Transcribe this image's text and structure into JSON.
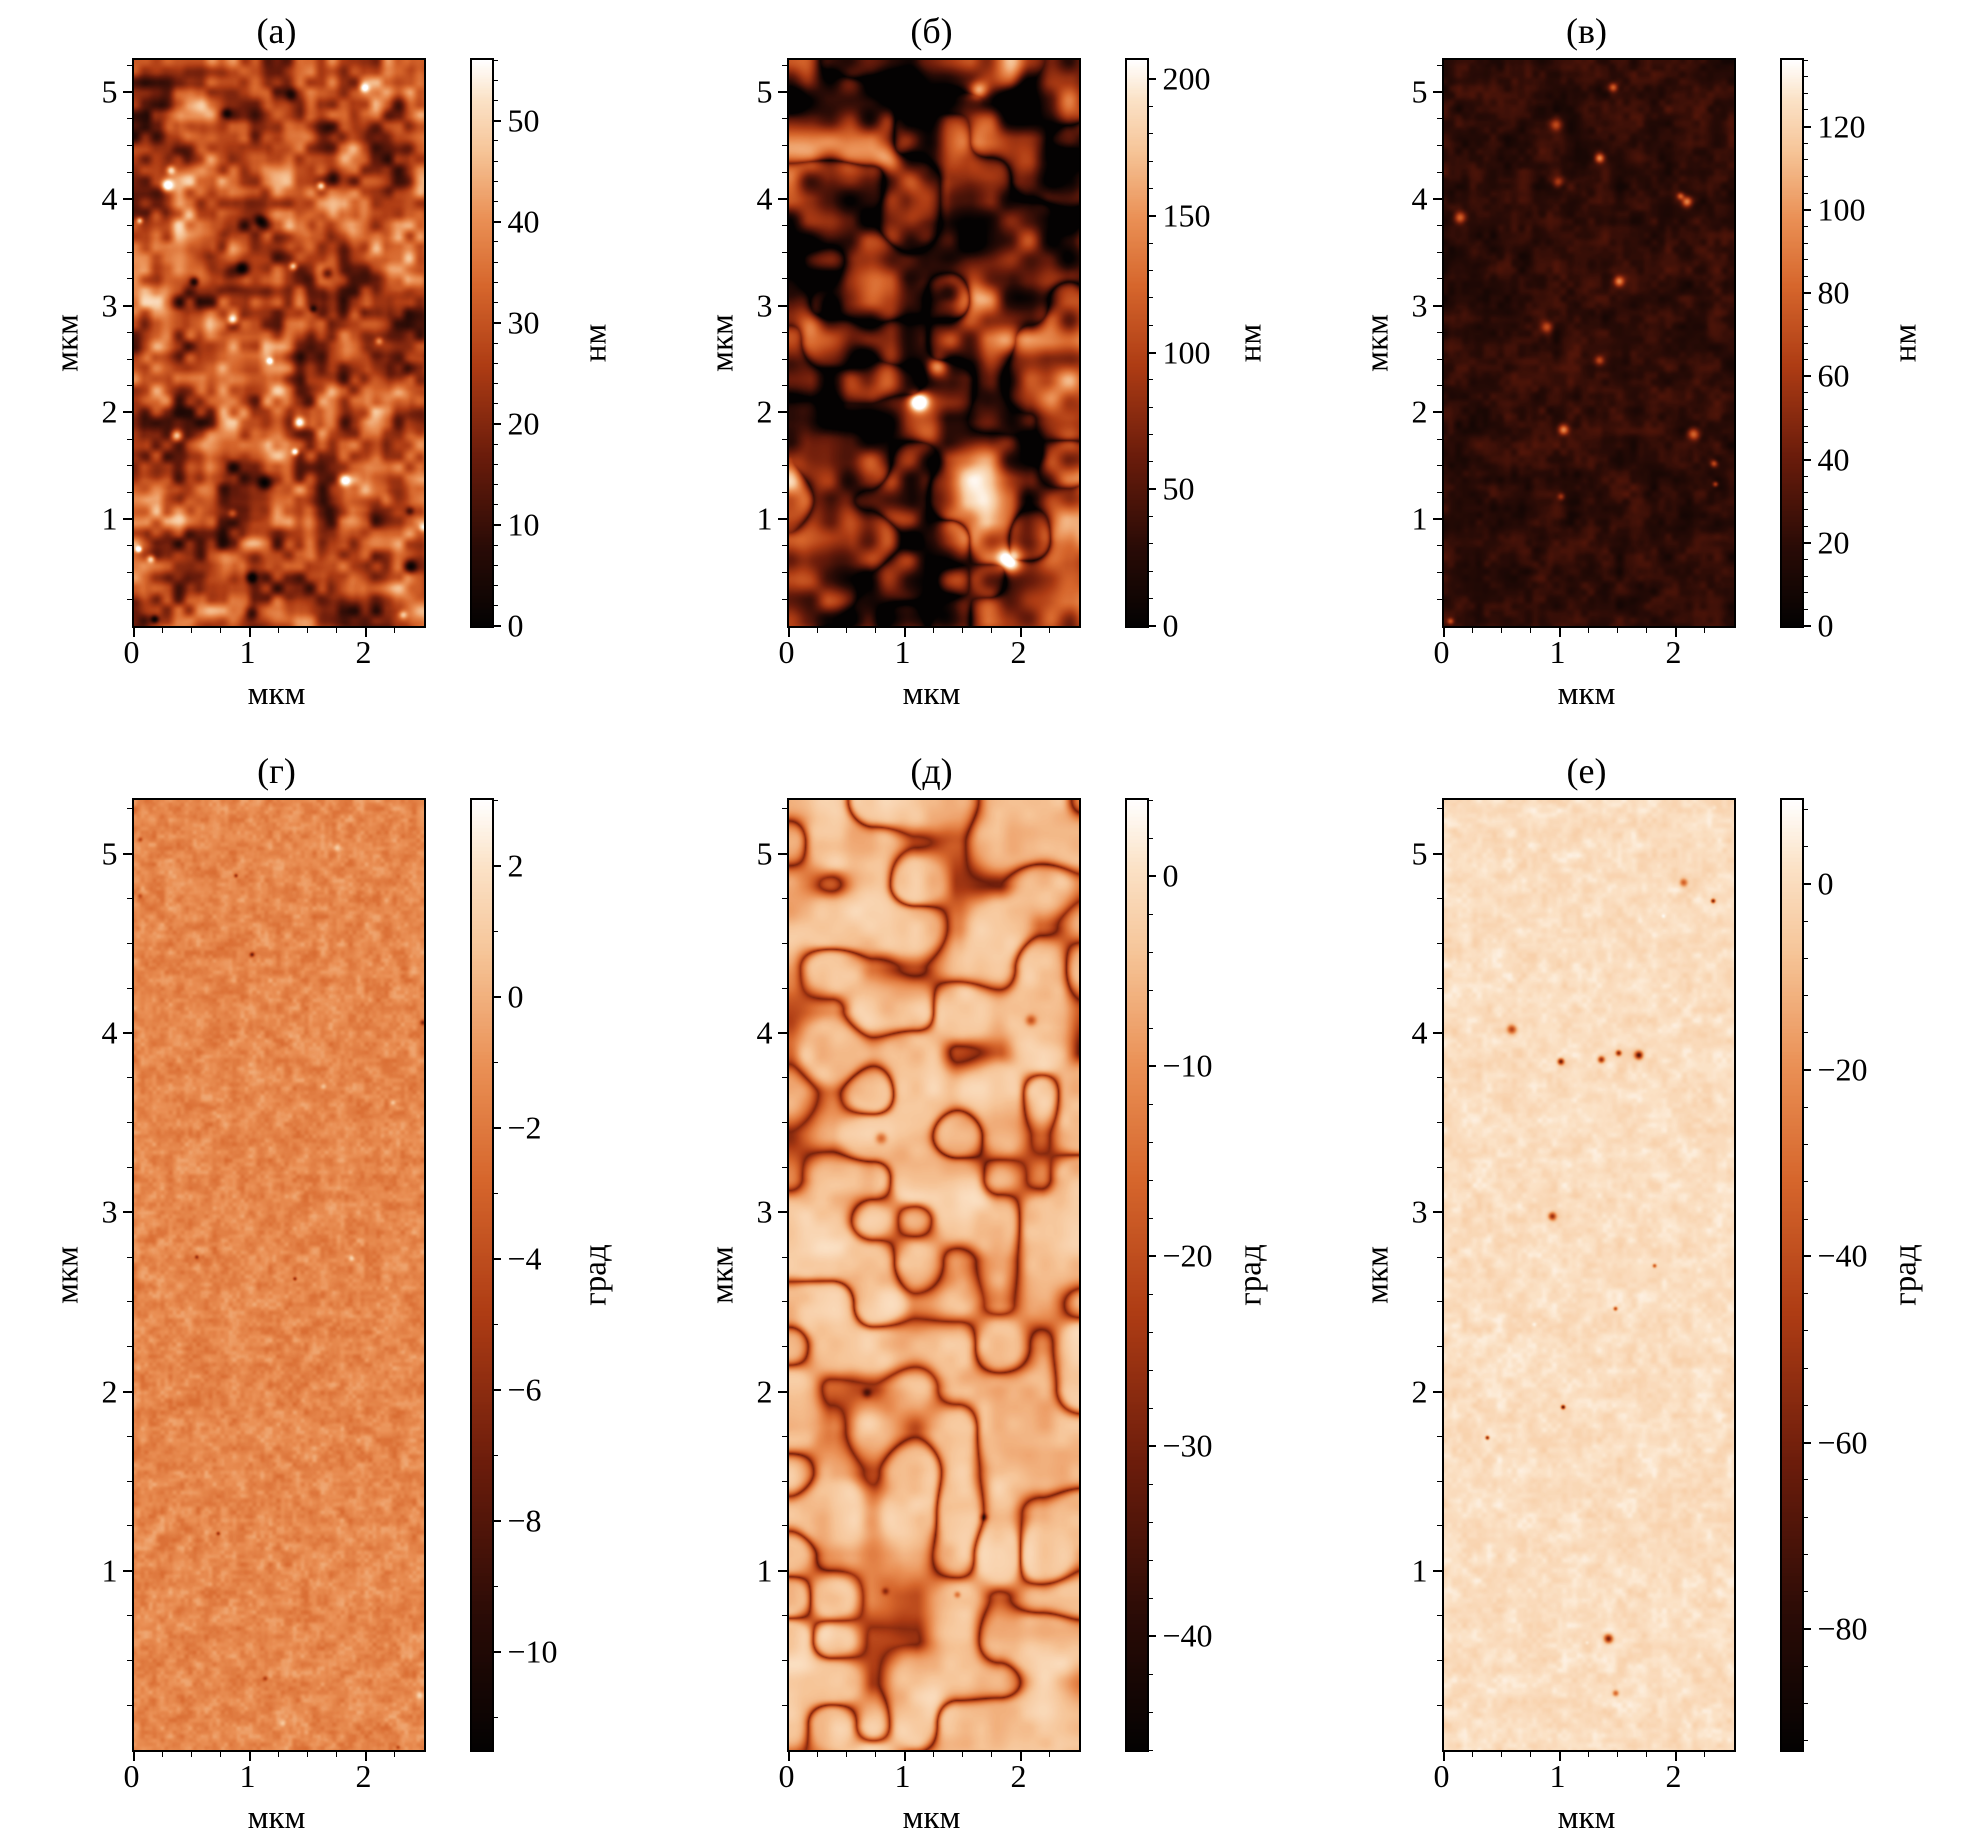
{
  "figure": {
    "type": "afm-six-panel-figure",
    "rows": 2,
    "cols": 3,
    "background": "#ffffff",
    "frame_color": "#000000",
    "colormap_stops": [
      [
        0.0,
        "#040202"
      ],
      [
        0.14,
        "#2a0b06"
      ],
      [
        0.3,
        "#6b1c0b"
      ],
      [
        0.46,
        "#ae3c14"
      ],
      [
        0.6,
        "#d6662c"
      ],
      [
        0.72,
        "#ea9055"
      ],
      [
        0.84,
        "#f6c598"
      ],
      [
        0.93,
        "#fbe2c6"
      ],
      [
        1.0,
        "#ffffff"
      ]
    ]
  },
  "chart_data": [
    {
      "type": "heatmap",
      "label": "(а)",
      "row": 0,
      "xlabel": "мкм",
      "ylabel": "мкм",
      "xlim": [
        0,
        2.5
      ],
      "ylim": [
        0,
        5.3
      ],
      "xticks": [
        0,
        1,
        2
      ],
      "yticks": [
        1,
        2,
        3,
        4,
        5
      ],
      "colorbar": {
        "unit": "нм",
        "ticks": [
          0,
          10,
          20,
          30,
          40,
          50
        ],
        "ticks_display": [
          "0",
          "10",
          "20",
          "30",
          "40",
          "50"
        ],
        "vmin": 0,
        "vmax": 56,
        "minor_step": 2
      },
      "surface": "AFM height map: dense mottled orange-red granular texture, mean height ~30 нм, scattered bright peaks near 55 нм and dark pits near 0 нм",
      "texture": {
        "seed": 11,
        "scale": 24,
        "scale2": 11,
        "mean": 0.5,
        "amp": 0.4,
        "contrast": 1.15,
        "spots_bright": {
          "n": 18,
          "r": [
            3,
            7
          ],
          "a": [
            0.25,
            0.6
          ]
        },
        "spots_dark": {
          "n": 14,
          "r": [
            4,
            9
          ],
          "a": [
            0.2,
            0.45
          ]
        }
      }
    },
    {
      "type": "heatmap",
      "label": "(б)",
      "row": 0,
      "xlabel": "мкм",
      "ylabel": "мкм",
      "xlim": [
        0,
        2.5
      ],
      "ylim": [
        0,
        5.3
      ],
      "xticks": [
        0,
        1,
        2
      ],
      "yticks": [
        1,
        2,
        3,
        4,
        5
      ],
      "colorbar": {
        "unit": "нм",
        "ticks": [
          0,
          50,
          100,
          150,
          200
        ],
        "ticks_display": [
          "0",
          "50",
          "100",
          "150",
          "200"
        ],
        "vmin": 0,
        "vmax": 207,
        "minor_step": 10
      },
      "surface": "AFM height map: large rounded grains 0.2–0.5 мкм with dark boundaries; a few very bright hillocks (~200 нм) in the lower part",
      "texture": {
        "seed": 22,
        "scale": 46,
        "scale2": 20,
        "mean": 0.47,
        "amp": 0.5,
        "contrast": 1.3,
        "cracks": {
          "scale": 40,
          "amp": 0.3,
          "power": 5
        },
        "spots_bright": {
          "n": 4,
          "r": [
            9,
            15
          ],
          "a": [
            0.45,
            0.85
          ]
        },
        "spots_dark": {
          "n": 5,
          "r": [
            10,
            18
          ],
          "a": [
            0.15,
            0.35
          ]
        }
      }
    },
    {
      "type": "heatmap",
      "label": "(в)",
      "row": 0,
      "xlabel": "мкм",
      "ylabel": "мкм",
      "xlim": [
        0,
        2.5
      ],
      "ylim": [
        0,
        5.3
      ],
      "xticks": [
        0,
        1,
        2
      ],
      "yticks": [
        1,
        2,
        3,
        4,
        5
      ],
      "colorbar": {
        "unit": "нм",
        "ticks": [
          0,
          20,
          40,
          60,
          80,
          100,
          120
        ],
        "ticks_display": [
          "0",
          "20",
          "40",
          "60",
          "80",
          "100",
          "120"
        ],
        "vmin": 0,
        "vmax": 136,
        "minor_step": 4
      },
      "surface": "AFM height map: very dark flat film with sparse small bright orange protrusions (20–130 нм)",
      "texture": {
        "seed": 33,
        "scale": 16,
        "scale2": 7,
        "mean": 0.15,
        "amp": 0.1,
        "contrast": 1,
        "spots_bright": {
          "n": 16,
          "r": [
            3,
            7
          ],
          "a": [
            0.25,
            0.55
          ]
        },
        "spots_dark": {
          "n": 0,
          "r": [
            0,
            0
          ],
          "a": [
            0,
            0
          ]
        }
      }
    },
    {
      "type": "heatmap",
      "label": "(г)",
      "row": 1,
      "xlabel": "мкм",
      "ylabel": "мкм",
      "xlim": [
        0,
        2.5
      ],
      "ylim": [
        0,
        5.3
      ],
      "xticks": [
        0,
        1,
        2
      ],
      "yticks": [
        1,
        2,
        3,
        4,
        5
      ],
      "colorbar": {
        "unit": "град",
        "ticks": [
          2,
          0,
          -2,
          -4,
          -6,
          -8,
          -10
        ],
        "ticks_display": [
          "2",
          "0",
          "−2",
          "−4",
          "−6",
          "−8",
          "−10"
        ],
        "vmin": -11.5,
        "vmax": 3,
        "minor_step": 1
      },
      "surface": "Phase image: uniform fine-grained light-orange surface, phase contrast within ±2 град, a few tiny dark points",
      "texture": {
        "seed": 44,
        "scale": 9,
        "scale2": 4,
        "mean": 0.7,
        "amp": 0.09,
        "contrast": 1,
        "spots_bright": {
          "n": 6,
          "r": [
            2,
            4
          ],
          "a": [
            0.08,
            0.18
          ]
        },
        "spots_dark": {
          "n": 10,
          "r": [
            2,
            3
          ],
          "a": [
            0.15,
            0.4
          ]
        }
      }
    },
    {
      "type": "heatmap",
      "label": "(д)",
      "row": 1,
      "xlabel": "мкм",
      "ylabel": "мкм",
      "xlim": [
        0,
        2.5
      ],
      "ylim": [
        0,
        5.3
      ],
      "xticks": [
        0,
        1,
        2
      ],
      "yticks": [
        1,
        2,
        3,
        4,
        5
      ],
      "colorbar": {
        "unit": "град",
        "ticks": [
          0,
          -10,
          -20,
          -30,
          -40
        ],
        "ticks_display": [
          "0",
          "−10",
          "−20",
          "−30",
          "−40"
        ],
        "vmin": -46,
        "vmax": 4,
        "minor_step": 2
      },
      "surface": "Phase image: light peach granular surface with dark red grain-boundary lines reaching −40 град",
      "texture": {
        "seed": 55,
        "scale": 36,
        "scale2": 16,
        "mean": 0.85,
        "amp": 0.09,
        "contrast": 1,
        "cracks": {
          "scale": 42,
          "amp": 0.5,
          "power": 7
        },
        "spots_bright": {
          "n": 0,
          "r": [
            0,
            0
          ],
          "a": [
            0,
            0
          ]
        },
        "spots_dark": {
          "n": 6,
          "r": [
            3,
            6
          ],
          "a": [
            0.2,
            0.4
          ]
        }
      }
    },
    {
      "type": "heatmap",
      "label": "(е)",
      "row": 1,
      "xlabel": "мкм",
      "ylabel": "мкм",
      "xlim": [
        0,
        2.5
      ],
      "ylim": [
        0,
        5.3
      ],
      "xticks": [
        0,
        1,
        2
      ],
      "yticks": [
        1,
        2,
        3,
        4,
        5
      ],
      "colorbar": {
        "unit": "град",
        "ticks": [
          0,
          -20,
          -40,
          -60,
          -80
        ],
        "ticks_display": [
          "0",
          "−20",
          "−40",
          "−60",
          "−80"
        ],
        "vmin": -93,
        "vmax": 9,
        "minor_step": 4
      },
      "surface": "Phase image: very light, nearly featureless cream surface with sparse small dark spots down to −80 град",
      "texture": {
        "seed": 66,
        "scale": 11,
        "scale2": 5,
        "mean": 0.92,
        "amp": 0.05,
        "contrast": 1,
        "spots_bright": {
          "n": 4,
          "r": [
            2,
            3
          ],
          "a": [
            0.04,
            0.08
          ]
        },
        "spots_dark": {
          "n": 14,
          "r": [
            2,
            5
          ],
          "a": [
            0.3,
            0.7
          ]
        }
      }
    }
  ]
}
